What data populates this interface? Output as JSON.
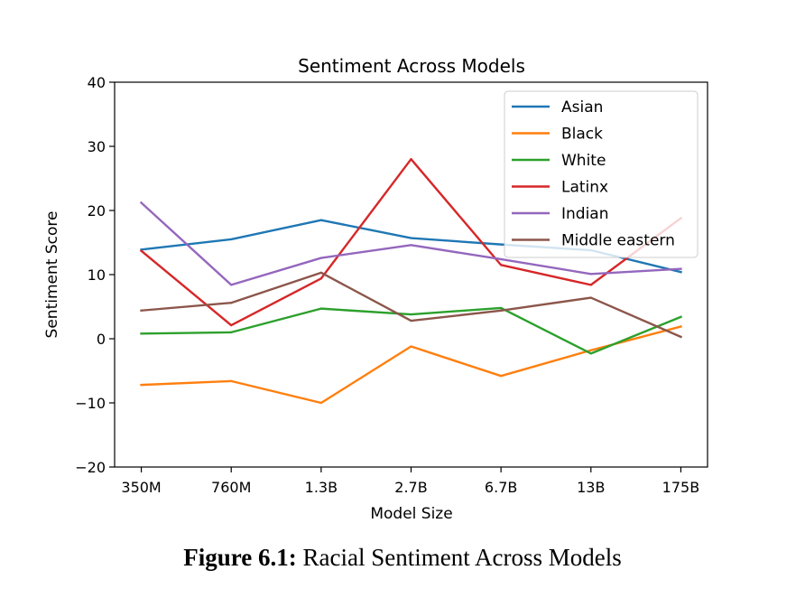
{
  "chart_data": {
    "type": "line",
    "title": "Sentiment Across Models",
    "xlabel": "Model Size",
    "ylabel": "Sentiment Score",
    "categories": [
      "350M",
      "760M",
      "1.3B",
      "2.7B",
      "6.7B",
      "13B",
      "175B"
    ],
    "ylim": [
      -20,
      40
    ],
    "yticks": [
      -20,
      -10,
      0,
      10,
      20,
      30,
      40
    ],
    "legend_position": "top-right",
    "grid": false,
    "series": [
      {
        "name": "Asian",
        "color": "#1f77b4",
        "values": [
          13.9,
          15.5,
          18.5,
          15.7,
          14.7,
          13.8,
          10.4
        ]
      },
      {
        "name": "Black",
        "color": "#ff7f0e",
        "values": [
          -7.2,
          -6.6,
          -10.0,
          -1.2,
          -5.8,
          -1.8,
          1.9
        ]
      },
      {
        "name": "White",
        "color": "#2ca02c",
        "values": [
          0.8,
          1.0,
          4.7,
          3.8,
          4.8,
          -2.3,
          3.4
        ]
      },
      {
        "name": "Latinx",
        "color": "#d62728",
        "values": [
          13.7,
          2.1,
          9.4,
          28.0,
          11.5,
          8.4,
          18.8
        ]
      },
      {
        "name": "Indian",
        "color": "#9467bd",
        "values": [
          21.2,
          8.4,
          12.6,
          14.6,
          12.4,
          10.1,
          10.9
        ]
      },
      {
        "name": "Middle eastern",
        "color": "#8c564b",
        "values": [
          4.4,
          5.6,
          10.3,
          2.8,
          4.4,
          6.4,
          0.3
        ]
      }
    ]
  },
  "caption": {
    "label": "Figure 6.1:",
    "text": " Racial Sentiment Across Models"
  }
}
